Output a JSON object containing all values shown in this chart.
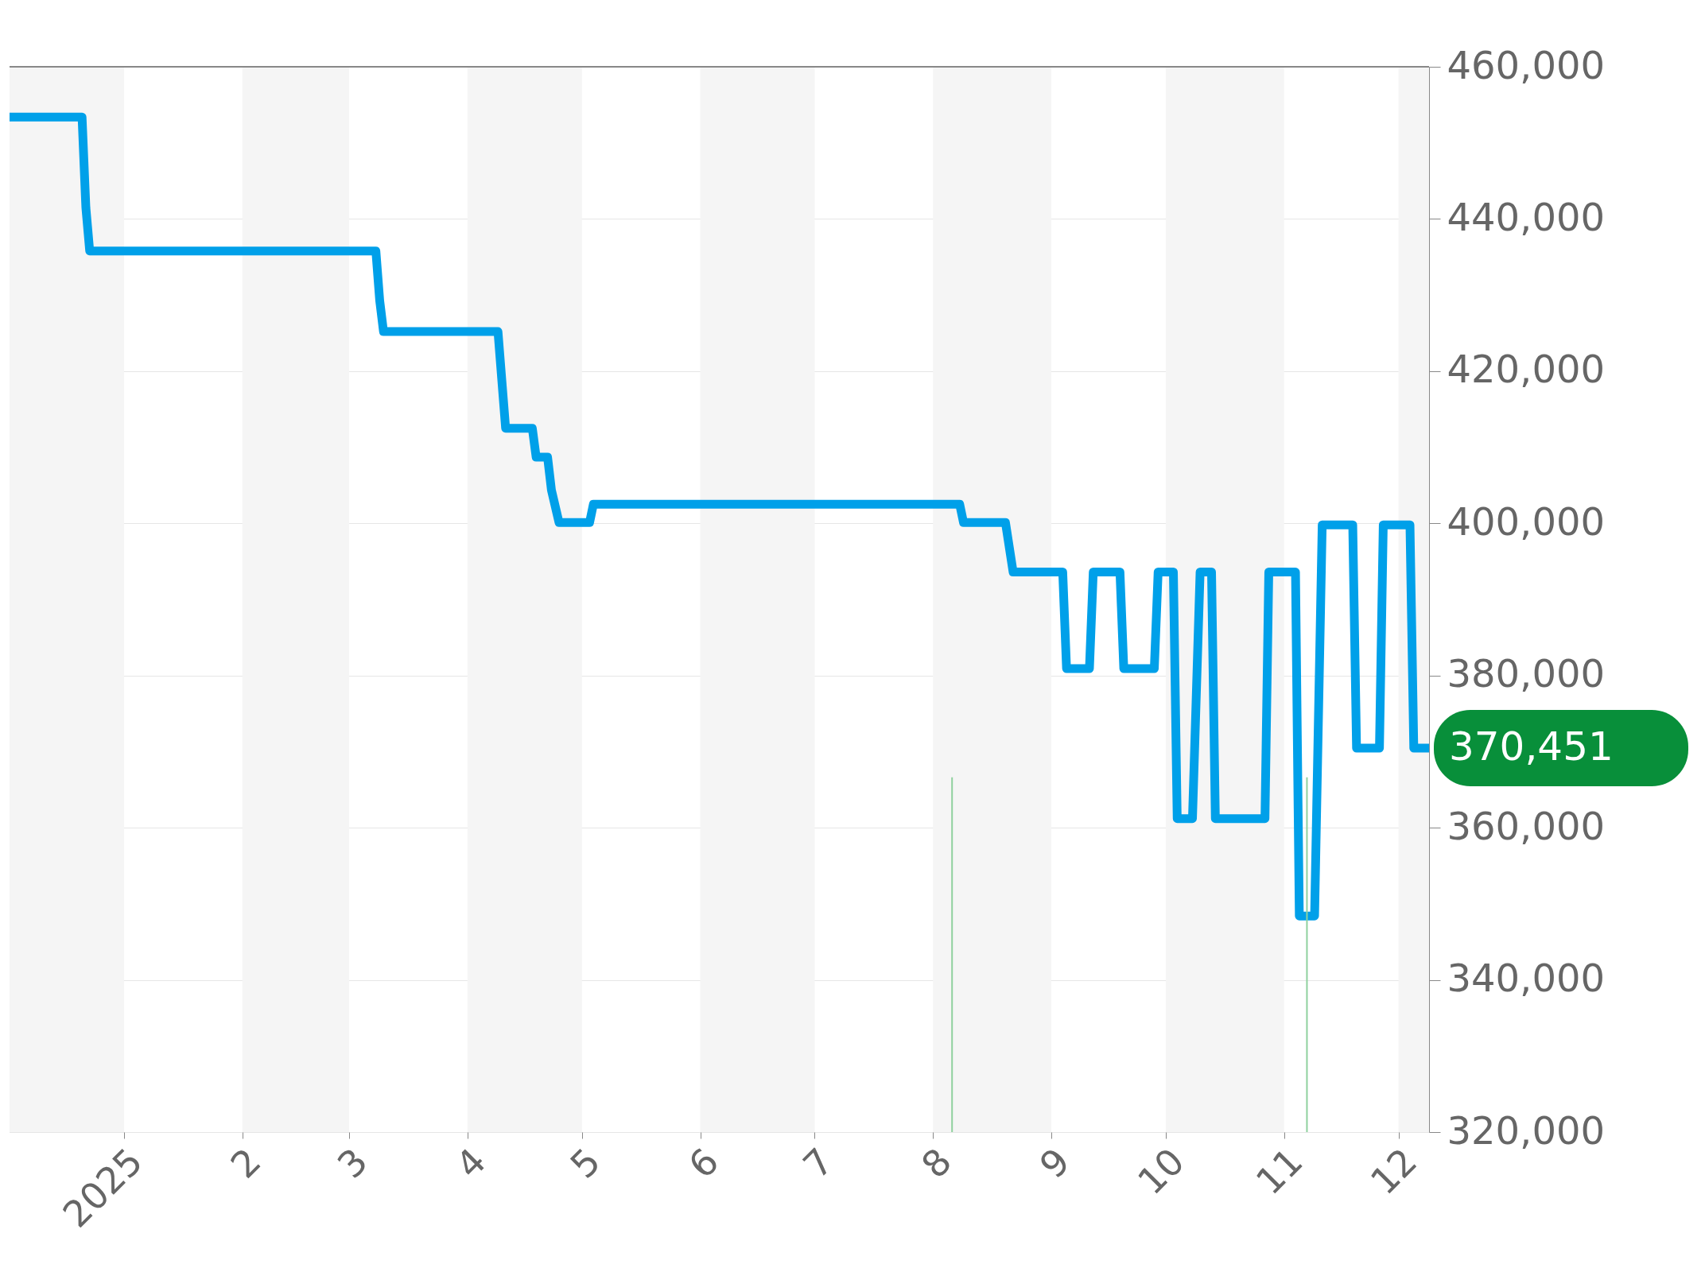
{
  "chart_data": {
    "type": "line",
    "x": [
      "2024-12-02",
      "2024-12-21",
      "2024-12-22",
      "2024-12-23",
      "2025-03-08",
      "2025-03-09",
      "2025-03-10",
      "2025-04-09",
      "2025-04-11",
      "2025-04-18",
      "2025-04-19",
      "2025-04-22",
      "2025-04-23",
      "2025-04-25",
      "2025-05-03",
      "2025-05-04",
      "2025-08-08",
      "2025-08-09",
      "2025-08-20",
      "2025-08-22",
      "2025-09-04",
      "2025-09-05",
      "2025-09-11",
      "2025-09-12",
      "2025-09-19",
      "2025-09-20",
      "2025-09-28",
      "2025-09-29",
      "2025-10-03",
      "2025-10-04",
      "2025-10-08",
      "2025-10-10",
      "2025-10-13",
      "2025-10-14",
      "2025-10-27",
      "2025-10-28",
      "2025-11-04",
      "2025-11-05",
      "2025-11-09",
      "2025-11-11",
      "2025-11-19",
      "2025-11-20",
      "2025-11-26",
      "2025-11-27",
      "2025-12-04",
      "2025-12-05",
      "2025-12-09"
    ],
    "series": [
      {
        "color": "#00a0e9",
        "values": [
          453400,
          453400,
          441500,
          435800,
          435800,
          429300,
          425200,
          425200,
          412500,
          412500,
          408700,
          408700,
          404400,
          400100,
          400100,
          402500,
          402500,
          400100,
          400100,
          393600,
          393600,
          380900,
          380900,
          393600,
          393600,
          380900,
          380900,
          393600,
          393600,
          361200,
          361200,
          393600,
          393600,
          361200,
          361200,
          393600,
          393600,
          348400,
          348400,
          399800,
          399800,
          370451,
          370451,
          399800,
          399800,
          370451,
          370451
        ]
      }
    ],
    "xlim": [
      "2024-12-02",
      "2025-12-09"
    ],
    "xticks": [
      {
        "value": "2025-01-01",
        "label": "2025"
      },
      {
        "value": "2025-02-01",
        "label": "2"
      },
      {
        "value": "2025-03-01",
        "label": "3"
      },
      {
        "value": "2025-04-01",
        "label": "4"
      },
      {
        "value": "2025-05-01",
        "label": "5"
      },
      {
        "value": "2025-06-01",
        "label": "6"
      },
      {
        "value": "2025-07-01",
        "label": "7"
      },
      {
        "value": "2025-08-01",
        "label": "8"
      },
      {
        "value": "2025-09-01",
        "label": "9"
      },
      {
        "value": "2025-10-01",
        "label": "10"
      },
      {
        "value": "2025-11-01",
        "label": "11"
      },
      {
        "value": "2025-12-01",
        "label": "12"
      }
    ],
    "ylim": [
      320000,
      460000
    ],
    "yticks": [
      {
        "value": 320000,
        "label": "320,000"
      },
      {
        "value": 340000,
        "label": "340,000"
      },
      {
        "value": 360000,
        "label": "360,000"
      },
      {
        "value": 380000,
        "label": "380,000"
      },
      {
        "value": 400000,
        "label": "400,000"
      },
      {
        "value": 420000,
        "label": "420,000"
      },
      {
        "value": 440000,
        "label": "440,000"
      },
      {
        "value": 460000,
        "label": "460,000"
      }
    ],
    "grid": "y",
    "marker": "none",
    "line_style": "solid",
    "bands": [
      {
        "axis": "x",
        "from": "2024-12-02",
        "to": "2025-01-01",
        "color": "#f5f5f5"
      },
      {
        "axis": "x",
        "from": "2025-02-01",
        "to": "2025-03-01",
        "color": "#f5f5f5"
      },
      {
        "axis": "x",
        "from": "2025-04-01",
        "to": "2025-05-01",
        "color": "#f5f5f5"
      },
      {
        "axis": "x",
        "from": "2025-06-01",
        "to": "2025-07-01",
        "color": "#f5f5f5"
      },
      {
        "axis": "x",
        "from": "2025-08-01",
        "to": "2025-09-01",
        "color": "#f5f5f5"
      },
      {
        "axis": "x",
        "from": "2025-10-01",
        "to": "2025-11-01",
        "color": "#f5f5f5"
      },
      {
        "axis": "x",
        "from": "2025-12-01",
        "to": "2025-12-09",
        "color": "#f5f5f5"
      }
    ],
    "ref_lines": [
      {
        "axis": "x",
        "value": "2025-08-06",
        "color": "#8fd19e"
      },
      {
        "axis": "x",
        "value": "2025-11-07",
        "color": "#8fd19e"
      }
    ],
    "annotations": [
      {
        "text": "370,451",
        "x": "2025-12-09",
        "y": 370451
      }
    ]
  }
}
